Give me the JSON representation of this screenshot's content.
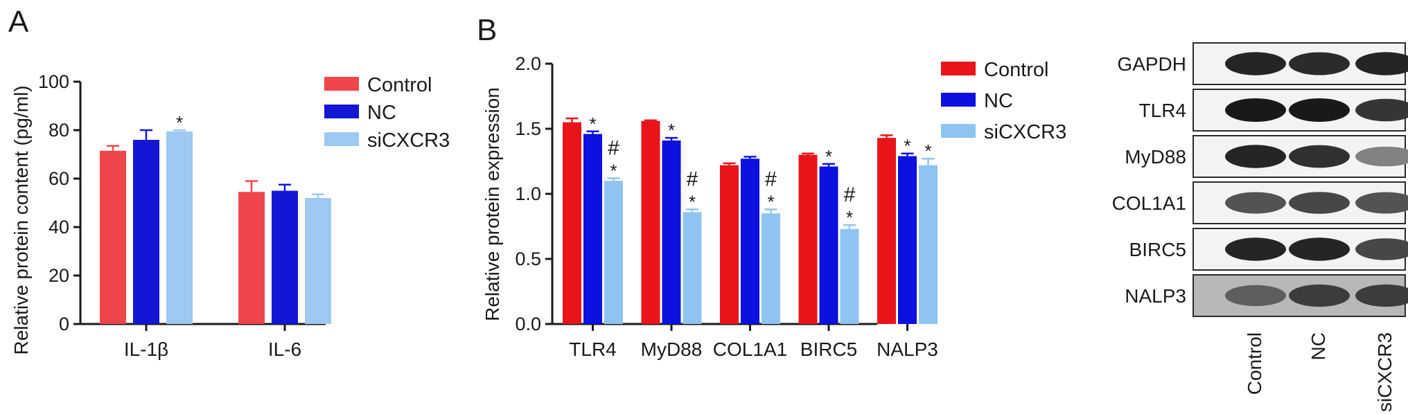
{
  "colors": {
    "control": "#f0454a",
    "nc": "#1416d6",
    "sicxcr3": "#9ec9f2",
    "control_b": "#e8141a",
    "nc_b": "#0c10e0",
    "sicxcr3_b": "#8fc4f2"
  },
  "panel_a": {
    "label": "A",
    "legend": [
      "Control",
      "NC",
      "siCXCR3"
    ]
  },
  "panel_b": {
    "label": "B",
    "legend": [
      "Control",
      "NC",
      "siCXCR3"
    ]
  },
  "chart_data": [
    {
      "type": "bar",
      "panel": "A",
      "ylabel": "Relative protein content (pg/ml)",
      "xlabel": "",
      "ylim": [
        0,
        100
      ],
      "yticks": [
        "0",
        "20",
        "40",
        "60",
        "80",
        "100"
      ],
      "categories": [
        "IL-1β",
        "IL-6"
      ],
      "series": [
        {
          "name": "Control",
          "values": [
            71.5,
            54.5
          ],
          "errors": [
            2.0,
            4.5
          ],
          "marks": [
            "",
            ""
          ]
        },
        {
          "name": "NC",
          "values": [
            76.0,
            55.0
          ],
          "errors": [
            4.0,
            2.5
          ],
          "marks": [
            "",
            ""
          ]
        },
        {
          "name": "siCXCR3",
          "values": [
            79.5,
            52.0
          ],
          "errors": [
            0.5,
            1.5
          ],
          "marks": [
            "*",
            ""
          ]
        }
      ],
      "legend_position": "top-right",
      "grid": false
    },
    {
      "type": "bar",
      "panel": "B",
      "ylabel": "Relative protein expression",
      "xlabel": "",
      "ylim": [
        0,
        2.0
      ],
      "yticks": [
        "0.0",
        "0.5",
        "1.0",
        "1.5",
        "2.0"
      ],
      "categories": [
        "TLR4",
        "MyD88",
        "COL1A1",
        "BIRC5",
        "NALP3"
      ],
      "series": [
        {
          "name": "Control",
          "values": [
            1.55,
            1.56,
            1.22,
            1.3,
            1.43
          ],
          "errors": [
            0.03,
            0.005,
            0.015,
            0.01,
            0.02
          ],
          "marks": [
            "",
            "",
            "",
            "",
            ""
          ]
        },
        {
          "name": "NC",
          "values": [
            1.46,
            1.41,
            1.27,
            1.21,
            1.29
          ],
          "errors": [
            0.02,
            0.02,
            0.015,
            0.02,
            0.02
          ],
          "marks": [
            "*",
            "*",
            "",
            "*",
            "*"
          ]
        },
        {
          "name": "siCXCR3",
          "values": [
            1.1,
            0.86,
            0.85,
            0.73,
            1.22
          ],
          "errors": [
            0.02,
            0.02,
            0.03,
            0.03,
            0.05
          ],
          "marks": [
            "#*",
            "#*",
            "#*",
            "#*",
            "*"
          ]
        }
      ],
      "legend_position": "top-right",
      "grid": false
    }
  ],
  "western_blot": {
    "bands": [
      "GAPDH",
      "TLR4",
      "MyD88",
      "COL1A1",
      "BIRC5",
      "NALP3"
    ],
    "lanes": [
      "Control",
      "NC",
      "siCXCR3"
    ],
    "intensity": [
      [
        0.95,
        0.92,
        0.95
      ],
      [
        1.0,
        1.0,
        0.88
      ],
      [
        0.95,
        0.9,
        0.55
      ],
      [
        0.75,
        0.8,
        0.75
      ],
      [
        0.95,
        0.95,
        0.8
      ],
      [
        0.7,
        0.85,
        0.85
      ]
    ]
  }
}
